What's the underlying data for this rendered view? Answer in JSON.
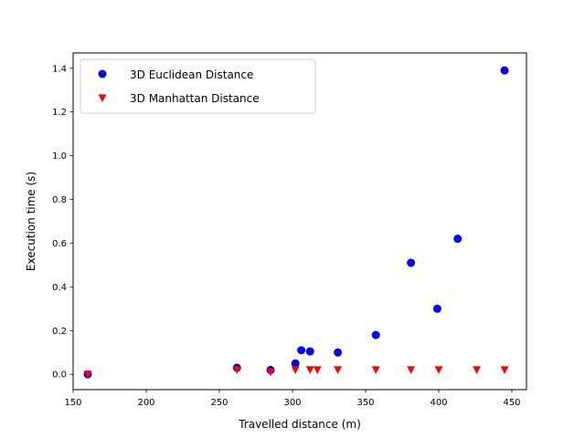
{
  "chart_data": {
    "type": "scatter",
    "xlabel": "Travelled distance (m)",
    "ylabel": "Execution time (s)",
    "xlim": [
      150,
      460
    ],
    "ylim": [
      -0.07,
      1.47
    ],
    "x_ticks": [
      150,
      200,
      250,
      300,
      350,
      400,
      450
    ],
    "x_tick_labels": [
      "150",
      "200",
      "250",
      "300",
      "350",
      "400",
      "450"
    ],
    "y_ticks": [
      0.0,
      0.2,
      0.4,
      0.6,
      0.8,
      1.0,
      1.2,
      1.4
    ],
    "y_tick_labels": [
      "0.0",
      "0.2",
      "0.4",
      "0.6",
      "0.8",
      "1.0",
      "1.2",
      "1.4"
    ],
    "grid": false,
    "legend_position": "top-left",
    "series": [
      {
        "name": "3D Euclidean Distance",
        "marker": "circle",
        "color": "#0000ff",
        "x": [
          160,
          262,
          285,
          302,
          306,
          312,
          331,
          357,
          381,
          399,
          413,
          445
        ],
        "y": [
          0.0,
          0.03,
          0.02,
          0.05,
          0.11,
          0.105,
          0.1,
          0.18,
          0.51,
          0.3,
          0.62,
          1.39
        ]
      },
      {
        "name": "3D Manhattan Distance",
        "marker": "triangle-down",
        "color": "#ff0000",
        "x": [
          160,
          262,
          285,
          302,
          312,
          317,
          331,
          357,
          381,
          400,
          426,
          445
        ],
        "y": [
          0.0,
          0.02,
          0.01,
          0.02,
          0.02,
          0.02,
          0.02,
          0.02,
          0.02,
          0.02,
          0.02,
          0.02
        ]
      }
    ]
  }
}
